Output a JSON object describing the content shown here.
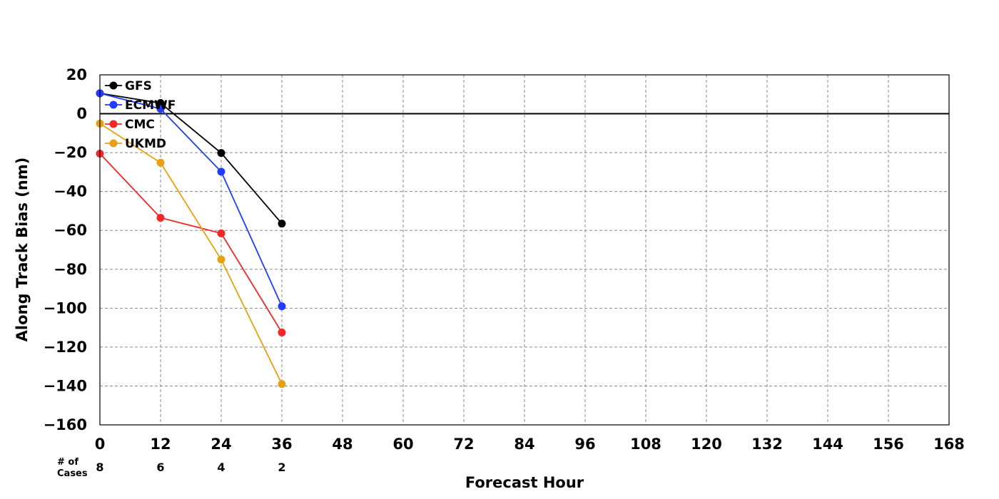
{
  "chart_data": {
    "type": "line",
    "xlabel": "Forecast Hour",
    "ylabel": "Along Track Bias (nm)",
    "xlim": [
      0,
      168
    ],
    "ylim": [
      -160,
      20
    ],
    "xticks": [
      0,
      12,
      24,
      36,
      48,
      60,
      72,
      84,
      96,
      108,
      120,
      132,
      144,
      156,
      168
    ],
    "xtick_labels": [
      "0",
      "12",
      "24",
      "36",
      "48",
      "60",
      "72",
      "84",
      "96",
      "108",
      "120",
      "132",
      "144",
      "156",
      "168"
    ],
    "yticks": [
      20,
      0,
      -20,
      -40,
      -60,
      -80,
      -100,
      -120,
      -140,
      -160
    ],
    "ytick_labels": [
      "20",
      "0",
      "−20",
      "−40",
      "−60",
      "−80",
      "−100",
      "−120",
      "−140",
      "−160"
    ],
    "grid": true,
    "zero_line": true,
    "legend_position": "top-left",
    "series": [
      {
        "name": "GFS",
        "color": "#000000",
        "x": [
          0,
          12,
          24,
          36
        ],
        "values": [
          10.5,
          5.5,
          -20.2,
          -56.5
        ]
      },
      {
        "name": "ECMWF",
        "color": "#1f3cff",
        "x": [
          0,
          12,
          24,
          36
        ],
        "values": [
          10.5,
          2.5,
          -29.8,
          -99.0
        ]
      },
      {
        "name": "CMC",
        "color": "#f02828",
        "x": [
          0,
          12,
          24,
          36
        ],
        "values": [
          -20.5,
          -53.5,
          -61.5,
          -112.5
        ]
      },
      {
        "name": "UKMD",
        "color": "#e8a010",
        "x": [
          0,
          12,
          24,
          36
        ],
        "values": [
          -5.0,
          -25.2,
          -75.0,
          -139.0
        ]
      }
    ],
    "cases": {
      "label_line1": "# of",
      "label_line2": "Cases",
      "x": [
        0,
        12,
        24,
        36
      ],
      "counts": [
        "8",
        "6",
        "4",
        "2"
      ]
    }
  }
}
